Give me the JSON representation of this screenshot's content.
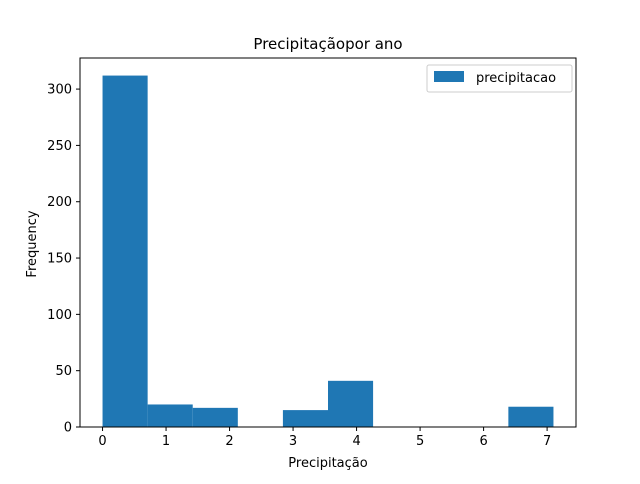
{
  "chart_data": {
    "type": "histogram",
    "title": "Precipitaçãopor ano",
    "xlabel": "Precipitação",
    "ylabel": "Frequency",
    "xlim": [
      -0.355,
      7.455
    ],
    "ylim": [
      0,
      327.6
    ],
    "xticks": [
      0,
      1,
      2,
      3,
      4,
      5,
      6,
      7
    ],
    "yticks": [
      0,
      50,
      100,
      150,
      200,
      250,
      300
    ],
    "bin_edges": [
      0.0,
      0.71,
      1.42,
      2.13,
      2.84,
      3.55,
      4.26,
      4.97,
      5.68,
      6.39,
      7.1
    ],
    "series": [
      {
        "name": "precipitacao",
        "color": "#1f77b4",
        "values": [
          312,
          20,
          17,
          0,
          15,
          41,
          0,
          0,
          0,
          18
        ]
      }
    ],
    "legend": "top-right",
    "grid": false
  }
}
